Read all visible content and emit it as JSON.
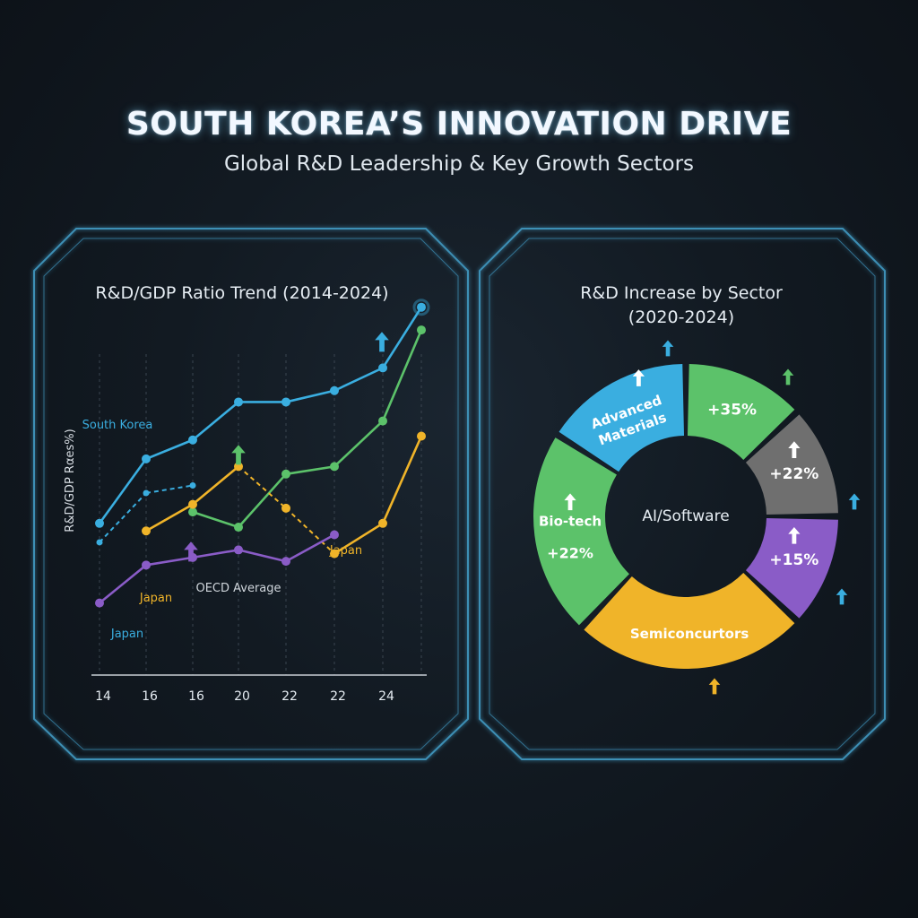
{
  "header": {
    "title": "SOUTH KOREA’S INNOVATION DRIVE",
    "subtitle": "Global R&D Leadership & Key Growth Sectors"
  },
  "colors": {
    "background": "#0f151c",
    "frame": "#3d8fb5",
    "blue": "#3aaee0",
    "green": "#5cc26a",
    "orange": "#f0b429",
    "purple": "#8a5cc7",
    "gray": "#6f6f6f"
  },
  "chart_data": [
    {
      "type": "line",
      "title": "R&D/GDP Ratio Trend (2014-2024)",
      "ylabel": "R&D/GDP Rαes%)",
      "x_tick_labels": [
        "14",
        "16",
        "16",
        "20",
        "22",
        "22",
        "24"
      ],
      "grid": "vertical dashed",
      "series": [
        {
          "name": "South Korea",
          "color": "#3aaee0",
          "values": [
            0.4,
            0.57,
            0.62,
            0.72,
            0.72,
            0.75,
            0.81,
            0.97
          ]
        },
        {
          "values": [
            null,
            null,
            0.43,
            0.39,
            0.53,
            0.55,
            0.67,
            0.91
          ],
          "color": "#5cc26a"
        },
        {
          "values": [
            null,
            0.38,
            0.45,
            0.55,
            0.44,
            0.32,
            0.4,
            0.63
          ],
          "color": "#f0b429",
          "dashed_until_index": 4
        },
        {
          "values": [
            0.19,
            0.29,
            0.31,
            0.33,
            0.3,
            0.37
          ],
          "color": "#8a5cc7"
        },
        {
          "values": [
            0.35,
            0.48,
            0.5
          ],
          "color": "#3aaee0",
          "dashed": true
        }
      ],
      "annotations": [
        {
          "text": "South Korea",
          "color": "#3aaee0"
        },
        {
          "text": "Japan",
          "color": "#f0b429"
        },
        {
          "text": "Japan",
          "color": "#f0b429"
        },
        {
          "text": "OECD Average",
          "color": "#d0d6dc"
        },
        {
          "text": "Japan",
          "color": "#3aaee0"
        }
      ],
      "arrows": [
        {
          "color": "#3aaee0",
          "direction": "up"
        },
        {
          "color": "#5cc26a",
          "direction": "up"
        },
        {
          "color": "#8a5cc7",
          "direction": "up"
        }
      ]
    },
    {
      "type": "pie",
      "style": "donut",
      "title": "R&D Increase by Sector",
      "subtitle": "(2020-2024)",
      "center_label": "AI/Software",
      "slices": [
        {
          "label": "Advanced Materials",
          "value": 16,
          "color": "#3aaee0",
          "icon_up": true
        },
        {
          "label": "+35%",
          "value": 13,
          "color": "#5cc26a"
        },
        {
          "label": "+22%",
          "value": 12,
          "color": "#6f6f6f",
          "icon_up": true
        },
        {
          "label": "+15%",
          "value": 12,
          "color": "#8a5cc7",
          "icon_up": true
        },
        {
          "label": "Semiconcurtors",
          "value": 25,
          "color": "#f0b429"
        },
        {
          "label": "Bio-tech",
          "value_label": "+22%",
          "value": 22,
          "color": "#5cc26a",
          "icon_up": true
        }
      ]
    }
  ]
}
